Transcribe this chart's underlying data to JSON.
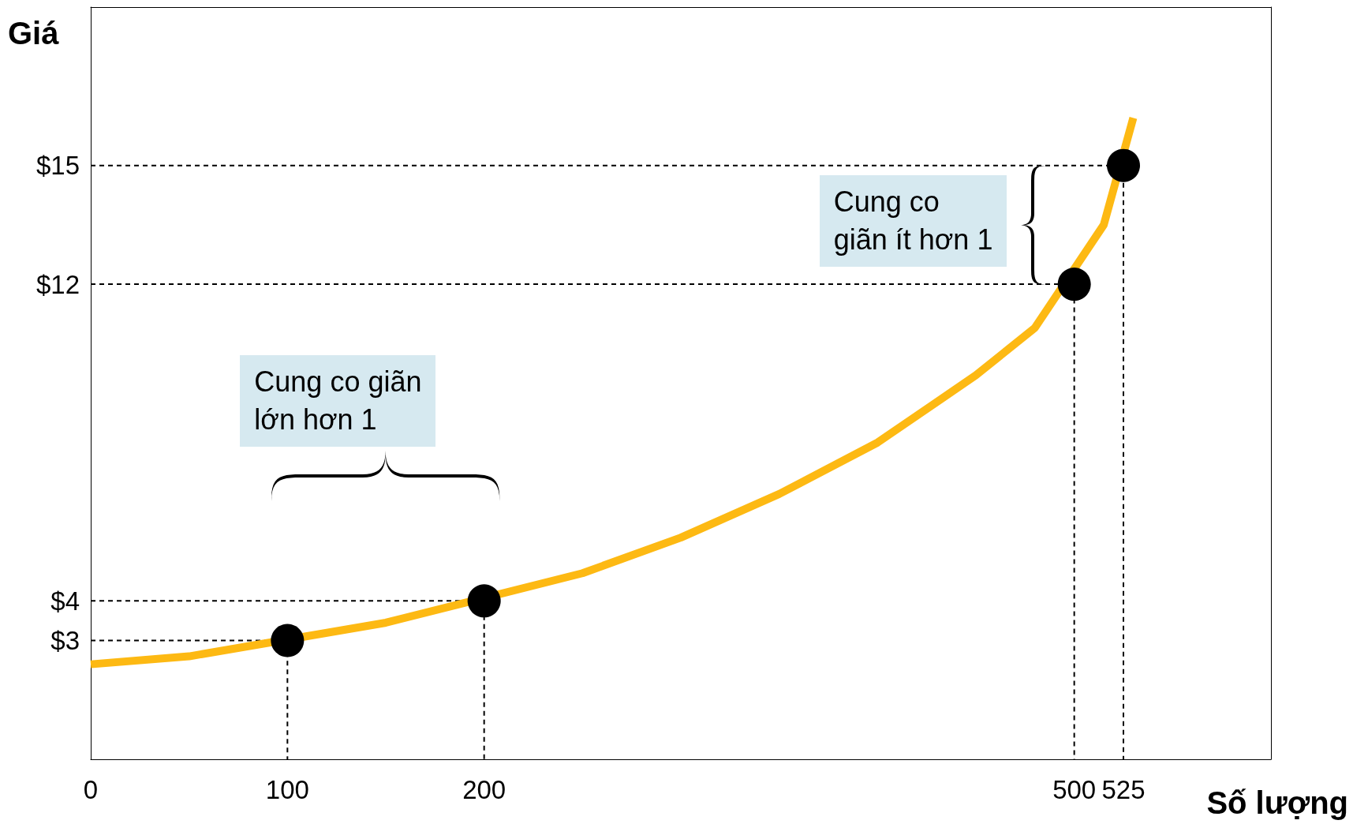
{
  "chart_data": {
    "type": "line",
    "xlabel": "Số lượng",
    "ylabel": "Giá",
    "xlim": [
      0,
      600
    ],
    "xticks": [
      0,
      100,
      200,
      500,
      525
    ],
    "ylim": [
      0,
      19
    ],
    "yticks": [
      {
        "value": 3,
        "label": "$3"
      },
      {
        "value": 4,
        "label": "$4"
      },
      {
        "value": 12,
        "label": "$12"
      },
      {
        "value": 15,
        "label": "$15"
      }
    ],
    "grid": false,
    "series": [
      {
        "type": "line",
        "color": "#fdb913",
        "marker": "none",
        "line_style": "solid",
        "x": [
          0,
          50,
          150,
          250,
          300,
          350,
          400,
          450,
          480,
          515,
          530
        ],
        "values": [
          2.4,
          2.6,
          3.45,
          4.7,
          5.6,
          6.7,
          8,
          9.7,
          10.9,
          13.5,
          16.2
        ]
      },
      {
        "type": "line",
        "color": "#000000",
        "marker": "none",
        "line_style": "dashed",
        "x": [
          0,
          100,
          100
        ],
        "values": [
          3,
          3,
          0
        ]
      },
      {
        "type": "line",
        "color": "#000000",
        "marker": "none",
        "line_style": "dashed",
        "x": [
          0,
          200,
          200
        ],
        "values": [
          4,
          4,
          0
        ]
      },
      {
        "type": "line",
        "color": "#000000",
        "marker": "none",
        "line_style": "dashed",
        "x": [
          0,
          500,
          500
        ],
        "values": [
          12,
          12,
          0
        ]
      },
      {
        "type": "line",
        "color": "#000000",
        "marker": "none",
        "line_style": "dashed",
        "x": [
          0,
          525,
          525
        ],
        "values": [
          15,
          15,
          0
        ]
      },
      {
        "type": "scatter",
        "color": "#000000",
        "marker": "circle",
        "x": [
          100,
          200,
          500,
          525
        ],
        "values": [
          3,
          4,
          12,
          15
        ]
      }
    ],
    "annotations": [
      "Cung co\ngiãn ít hơn 1",
      "Cung co giãn\nlớn hơn 1"
    ]
  }
}
